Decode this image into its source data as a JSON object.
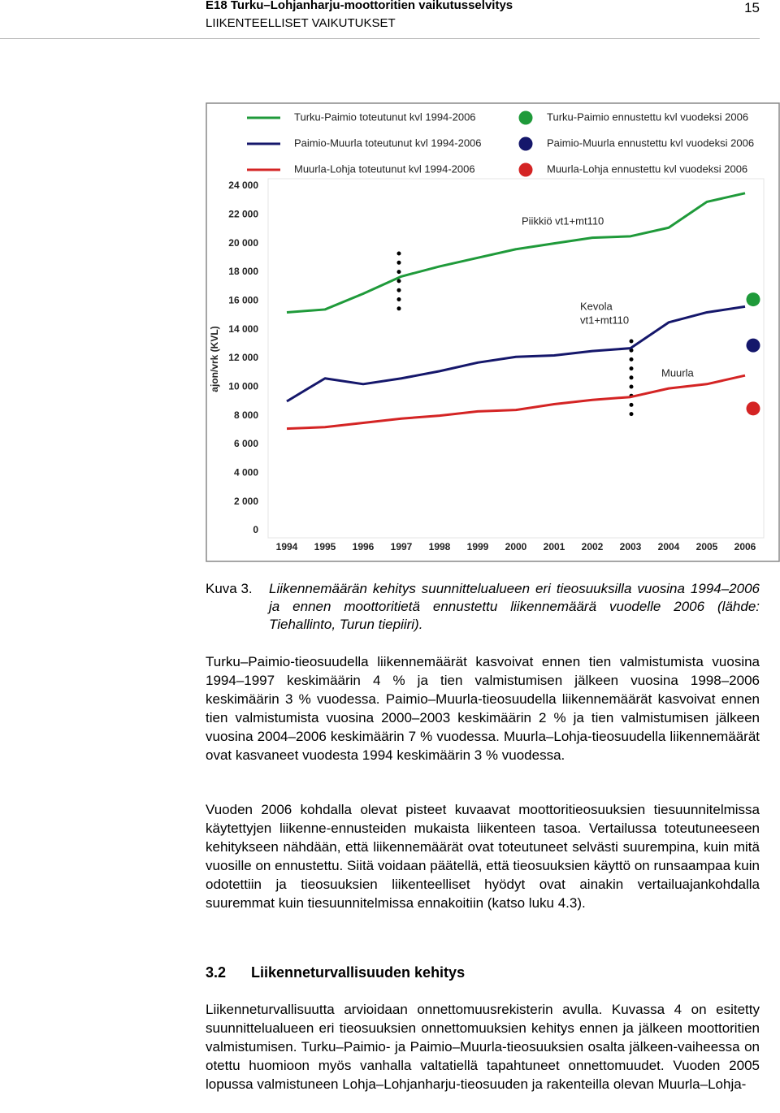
{
  "header": {
    "title": "E18 Turku–Lohjanharju-moottoritien vaikutusselvitys",
    "subtitle": "LIIKENTEELLISET VAIKUTUKSET",
    "page_number": "15"
  },
  "chart_data": {
    "type": "line",
    "y_label": "ajon/vrk (KVL)",
    "categories": [
      "1994",
      "1995",
      "1996",
      "1997",
      "1998",
      "1999",
      "2000",
      "2001",
      "2002",
      "2003",
      "2004",
      "2005",
      "2006"
    ],
    "ylim": [
      0,
      24000
    ],
    "yticks": [
      {
        "value": 0,
        "label": "0"
      },
      {
        "value": 2000,
        "label": "2 000"
      },
      {
        "value": 4000,
        "label": "4 000"
      },
      {
        "value": 6000,
        "label": "6 000"
      },
      {
        "value": 8000,
        "label": "8 000"
      },
      {
        "value": 10000,
        "label": "10 000"
      },
      {
        "value": 12000,
        "label": "12 000"
      },
      {
        "value": 14000,
        "label": "14 000"
      },
      {
        "value": 16000,
        "label": "16 000"
      },
      {
        "value": 18000,
        "label": "18 000"
      },
      {
        "value": 20000,
        "label": "20 000"
      },
      {
        "value": 22000,
        "label": "22 000"
      },
      {
        "value": 24000,
        "label": "24 000"
      }
    ],
    "series": [
      {
        "name": "Turku-Paimio toteutunut kvl 1994-2006",
        "color": "#1f9a3a",
        "style": "line",
        "values": [
          15200,
          15400,
          16500,
          17700,
          18400,
          19000,
          19600,
          20000,
          20400,
          20500,
          21100,
          22900,
          23500
        ]
      },
      {
        "name": "Paimio-Muurla toteutunut kvl 1994-2006",
        "color": "#15176b",
        "style": "line",
        "values": [
          9000,
          10600,
          10200,
          10600,
          11100,
          11700,
          12100,
          12200,
          12500,
          12700,
          14500,
          15200,
          15600
        ]
      },
      {
        "name": "Muurla-Lohja  toteutunut kvl 1994-2006",
        "color": "#d42424",
        "style": "line",
        "values": [
          7100,
          7200,
          7500,
          7800,
          8000,
          8300,
          8400,
          8800,
          9100,
          9300,
          9900,
          10200,
          10800
        ]
      },
      {
        "name": "Turku-Paimio ennustettu kvl vuodeksi 2006",
        "color": "#1f9a3a",
        "style": "point",
        "values": [
          null,
          null,
          null,
          null,
          null,
          null,
          null,
          null,
          null,
          null,
          null,
          null,
          16100
        ]
      },
      {
        "name": "Paimio-Muurla ennustettu kvl vuodeksi 2006",
        "color": "#15176b",
        "style": "point",
        "values": [
          null,
          null,
          null,
          null,
          null,
          null,
          null,
          null,
          null,
          null,
          null,
          null,
          12900
        ]
      },
      {
        "name": "Muurla-Lohja  ennustettu kvl vuodeksi 2006",
        "color": "#d42424",
        "style": "point",
        "values": [
          null,
          null,
          null,
          null,
          null,
          null,
          null,
          null,
          null,
          null,
          null,
          null,
          8500
        ]
      }
    ],
    "annotations": [
      "Piikkiö vt1+mt110",
      "Kevola",
      "vt1+mt110",
      "Muurla"
    ]
  },
  "caption": {
    "label": "Kuva 3.",
    "text": "Liikennemäärän kehitys suunnittelualueen eri tieosuuksilla vuosina 1994–2006 ja ennen moottoritietä ennustettu liikennemäärä vuodelle 2006 (lähde: Tiehallinto, Turun tiepiiri)."
  },
  "paragraphs": [
    "Turku–Paimio-tieosuudella liikennemäärät kasvoivat ennen tien valmistumista vuosina 1994–1997 keskimäärin 4 % ja tien valmistumisen jälkeen vuosina 1998–2006 keskimäärin 3 % vuodessa. Paimio–Muurla-tieosuudella liikennemäärät kasvoivat ennen tien valmistumista vuosina 2000–2003 keskimäärin 2 % ja tien valmistumisen jälkeen vuosina 2004–2006 keskimäärin 7 % vuodessa. Muurla–Lohja-tieosuudella liikennemäärät ovat kasvaneet vuodesta 1994 keskimäärin 3 % vuodessa.",
    "Vuoden 2006 kohdalla olevat pisteet kuvaavat moottoritieosuuksien tiesuunnitelmissa käytettyjen liikenne-ennusteiden mukaista liikenteen tasoa. Vertailussa toteutuneeseen kehitykseen nähdään, että liikennemäärät ovat toteutuneet selvästi suurempina, kuin mitä vuosille on ennustettu. Siitä voidaan päätellä, että tieosuuksien käyttö on runsaampaa kuin odotettiin ja tieosuuksien liikenteelliset hyödyt ovat ainakin vertailuajankohdalla suuremmat kuin tiesuunnitelmissa ennakoitiin (katso luku 4.3).",
    "Liikenneturvallisuutta arvioidaan onnettomuusrekisterin avulla. Kuvassa 4 on esitetty suunnittelualueen eri tieosuuksien onnettomuuksien kehitys ennen ja jälkeen moottoritien valmistumisen. Turku–Paimio- ja Paimio–Muurla-tieosuuksien osalta jälkeen-vaiheessa on otettu huomioon myös vanhalla valtatiellä tapahtuneet onnettomuudet. Vuoden 2005 lopussa valmistuneen Lohja–Lohjanharju-tieosuuden ja rakenteilla olevan Muurla–Lohja-"
  ],
  "section": {
    "number": "3.2",
    "title": "Liikenneturvallisuuden kehitys"
  }
}
